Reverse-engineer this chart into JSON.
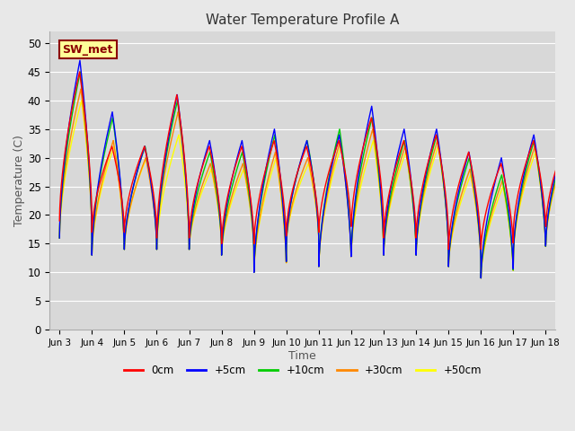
{
  "title": "Water Temperature Profile A",
  "xlabel": "Time",
  "ylabel": "Temperature (C)",
  "ylim": [
    0,
    52
  ],
  "yticks": [
    0,
    5,
    10,
    15,
    20,
    25,
    30,
    35,
    40,
    45,
    50
  ],
  "background_color": "#e8e8e8",
  "plot_bg_color": "#d8d8d8",
  "grid_color": "#ffffff",
  "annotation_text": "SW_met",
  "annotation_bg": "#ffff99",
  "annotation_border": "#8b0000",
  "legend_labels": [
    "0cm",
    "+5cm",
    "+10cm",
    "+30cm",
    "+50cm"
  ],
  "line_colors": [
    "#ff0000",
    "#0000ff",
    "#00cc00",
    "#ff8800",
    "#ffff00"
  ],
  "xtick_labels": [
    "Jun 3",
    "Jun 4",
    "Jun 5",
    "Jun 6",
    "Jun 7",
    "Jun 8",
    "Jun 9",
    "Jun 10",
    "Jun 11",
    "Jun 12",
    "Jun 13",
    "Jun 14",
    "Jun 15",
    "Jun 16",
    "Jun 17",
    "Jun 18"
  ],
  "n_days": 16,
  "peaks_blue": [
    47,
    38,
    32,
    41,
    33,
    33,
    35,
    33,
    34,
    39,
    35,
    35,
    31,
    30,
    34,
    34
  ],
  "peaks_green": [
    45,
    37,
    32,
    40,
    31,
    31,
    34,
    33,
    35,
    37,
    33,
    34,
    30,
    27,
    33,
    33
  ],
  "peaks_orange": [
    42,
    33,
    30,
    38,
    29,
    29,
    31,
    30,
    33,
    35,
    32,
    33,
    28,
    26,
    32,
    32
  ],
  "peaks_yellow": [
    40,
    32,
    30,
    34,
    28,
    28,
    30,
    29,
    32,
    33,
    31,
    32,
    27,
    25,
    31,
    32
  ],
  "peaks_red": [
    45,
    32,
    32,
    41,
    32,
    32,
    33,
    32,
    33,
    37,
    33,
    34,
    31,
    29,
    33,
    33
  ],
  "troughs_all": [
    16,
    13,
    14,
    14,
    14,
    13,
    10,
    15,
    11,
    13,
    13,
    13,
    11,
    9,
    13,
    15
  ],
  "troughs_red": [
    19,
    17,
    17,
    16,
    16,
    15,
    15,
    17,
    17,
    18,
    16,
    16,
    14,
    14,
    17,
    18
  ]
}
